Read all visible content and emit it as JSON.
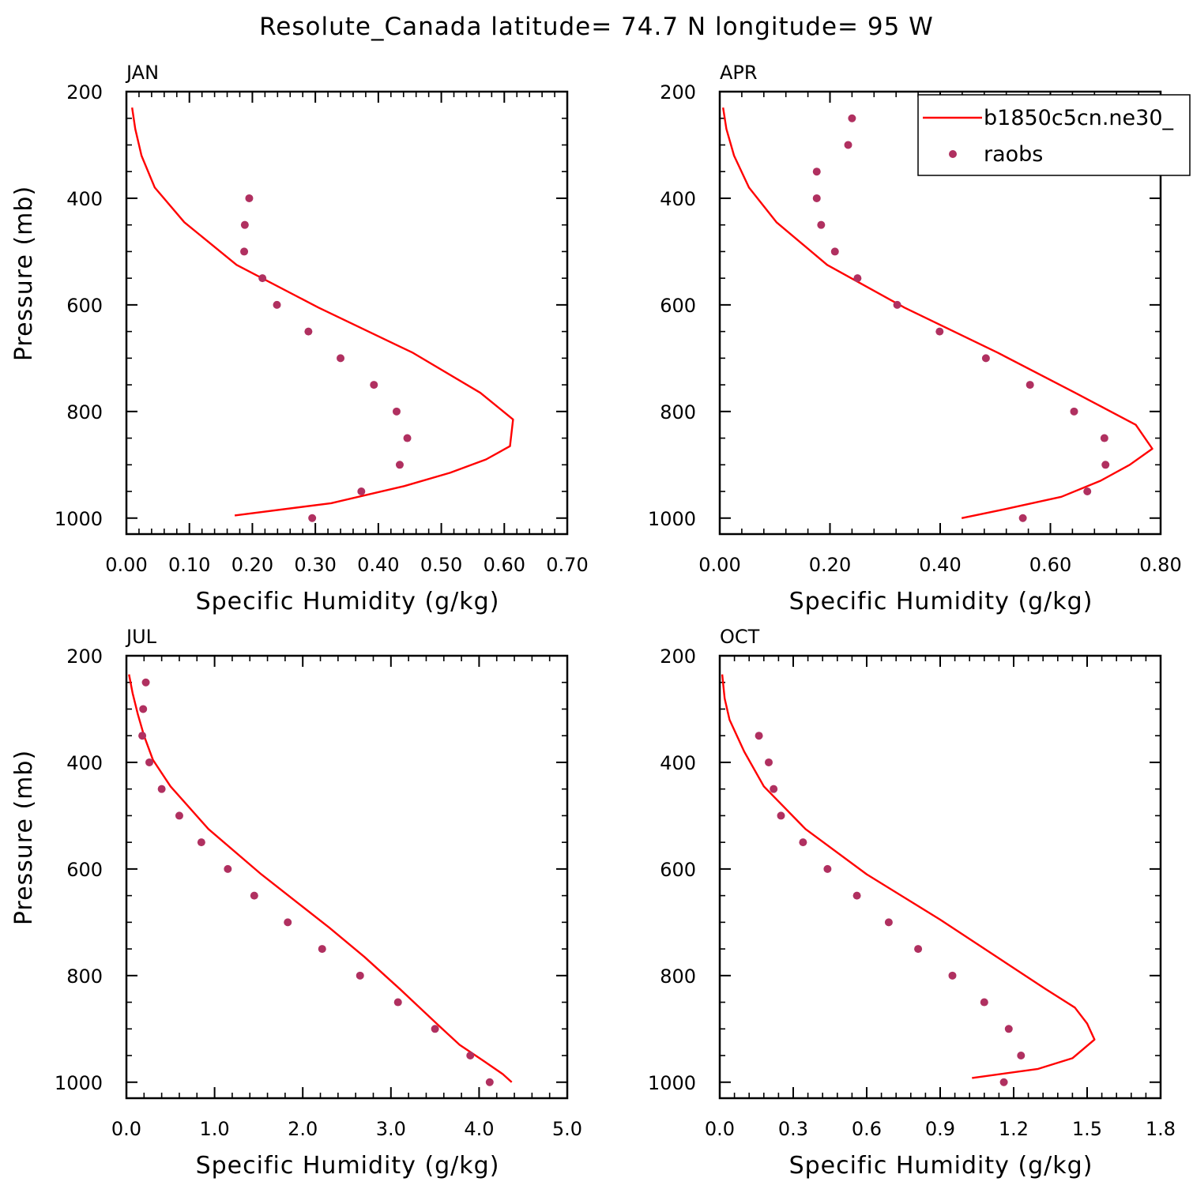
{
  "figure": {
    "title": "Resolute_Canada  latitude= 74.7 N longitude= 95 W",
    "legend": {
      "placement": "top-right of APR panel",
      "model_label": "b1850c5cn.ne30_",
      "obs_label": "raobs"
    },
    "colors": {
      "model": "#ff0000",
      "obs": "#b03060"
    }
  },
  "chart_data": [
    {
      "type": "line",
      "title": "JAN",
      "xlabel": "Specific Humidity (g/kg)",
      "ylabel": "Pressure (mb)",
      "xlim": [
        0,
        0.7
      ],
      "ylim": [
        200,
        1030
      ],
      "y_reversed": true,
      "xticks": [
        0,
        0.1,
        0.2,
        0.3,
        0.4,
        0.5,
        0.6,
        0.7
      ],
      "xtick_labels": [
        "0.00",
        "0.10",
        "0.20",
        "0.30",
        "0.40",
        "0.50",
        "0.60",
        "0.70"
      ],
      "yticks": [
        200,
        400,
        600,
        800,
        1000
      ],
      "ytick_labels": [
        "200",
        "400",
        "600",
        "800",
        "1000"
      ],
      "series": [
        {
          "kind": "line",
          "points": [
            [
              0.009,
              230
            ],
            [
              0.014,
              270
            ],
            [
              0.024,
              320
            ],
            [
              0.045,
              380
            ],
            [
              0.092,
              445
            ],
            [
              0.175,
              525
            ],
            [
              0.305,
              605
            ],
            [
              0.455,
              690
            ],
            [
              0.562,
              765
            ],
            [
              0.614,
              815
            ],
            [
              0.609,
              865
            ],
            [
              0.571,
              890
            ],
            [
              0.514,
              915
            ],
            [
              0.441,
              940
            ],
            [
              0.325,
              972
            ],
            [
              0.172,
              995
            ]
          ]
        },
        {
          "kind": "scatter",
          "points": [
            [
              0.195,
              400
            ],
            [
              0.188,
              450
            ],
            [
              0.187,
              500
            ],
            [
              0.216,
              550
            ],
            [
              0.239,
              600
            ],
            [
              0.289,
              650
            ],
            [
              0.34,
              700
            ],
            [
              0.393,
              750
            ],
            [
              0.429,
              800
            ],
            [
              0.446,
              850
            ],
            [
              0.434,
              900
            ],
            [
              0.373,
              950
            ],
            [
              0.295,
              1000
            ]
          ]
        }
      ]
    },
    {
      "type": "line",
      "title": "APR",
      "xlabel": "Specific Humidity (g/kg)",
      "ylabel": "",
      "xlim": [
        0,
        0.8
      ],
      "ylim": [
        200,
        1030
      ],
      "y_reversed": true,
      "xticks": [
        0,
        0.2,
        0.4,
        0.6,
        0.8
      ],
      "xtick_labels": [
        "0.00",
        "0.20",
        "0.40",
        "0.60",
        "0.80"
      ],
      "yticks": [
        200,
        400,
        600,
        800,
        1000
      ],
      "ytick_labels": [
        "200",
        "400",
        "600",
        "800",
        "1000"
      ],
      "series": [
        {
          "kind": "line",
          "points": [
            [
              0.006,
              230
            ],
            [
              0.012,
              270
            ],
            [
              0.026,
              320
            ],
            [
              0.053,
              380
            ],
            [
              0.103,
              445
            ],
            [
              0.195,
              525
            ],
            [
              0.335,
              605
            ],
            [
              0.505,
              690
            ],
            [
              0.645,
              765
            ],
            [
              0.755,
              825
            ],
            [
              0.785,
              870
            ],
            [
              0.744,
              900
            ],
            [
              0.691,
              930
            ],
            [
              0.62,
              960
            ],
            [
              0.51,
              985
            ],
            [
              0.439,
              1000
            ]
          ]
        },
        {
          "kind": "scatter",
          "points": [
            [
              0.24,
              250
            ],
            [
              0.233,
              300
            ],
            [
              0.176,
              350
            ],
            [
              0.176,
              400
            ],
            [
              0.184,
              450
            ],
            [
              0.209,
              500
            ],
            [
              0.25,
              550
            ],
            [
              0.322,
              600
            ],
            [
              0.399,
              650
            ],
            [
              0.483,
              700
            ],
            [
              0.563,
              750
            ],
            [
              0.643,
              800
            ],
            [
              0.698,
              850
            ],
            [
              0.7,
              900
            ],
            [
              0.667,
              950
            ],
            [
              0.55,
              1000
            ]
          ]
        }
      ]
    },
    {
      "type": "line",
      "title": "JUL",
      "xlabel": "Specific Humidity (g/kg)",
      "ylabel": "Pressure (mb)",
      "xlim": [
        0,
        5
      ],
      "ylim": [
        200,
        1030
      ],
      "y_reversed": true,
      "xticks": [
        0,
        1,
        2,
        3,
        4,
        5
      ],
      "xtick_labels": [
        "0.0",
        "1.0",
        "2.0",
        "3.0",
        "4.0",
        "5.0"
      ],
      "yticks": [
        200,
        400,
        600,
        800,
        1000
      ],
      "ytick_labels": [
        "200",
        "400",
        "600",
        "800",
        "1000"
      ],
      "series": [
        {
          "kind": "line",
          "points": [
            [
              0.03,
              235
            ],
            [
              0.07,
              270
            ],
            [
              0.13,
              310
            ],
            [
              0.2,
              350
            ],
            [
              0.3,
              395
            ],
            [
              0.5,
              445
            ],
            [
              0.93,
              525
            ],
            [
              1.53,
              610
            ],
            [
              2.3,
              710
            ],
            [
              2.7,
              765
            ],
            [
              3.1,
              825
            ],
            [
              3.55,
              895
            ],
            [
              3.78,
              930
            ],
            [
              4.05,
              960
            ],
            [
              4.27,
              985
            ],
            [
              4.37,
              1000
            ]
          ]
        },
        {
          "kind": "scatter",
          "points": [
            [
              0.22,
              250
            ],
            [
              0.19,
              300
            ],
            [
              0.18,
              350
            ],
            [
              0.26,
              400
            ],
            [
              0.4,
              450
            ],
            [
              0.6,
              500
            ],
            [
              0.85,
              550
            ],
            [
              1.15,
              600
            ],
            [
              1.45,
              650
            ],
            [
              1.83,
              700
            ],
            [
              2.22,
              750
            ],
            [
              2.65,
              800
            ],
            [
              3.08,
              850
            ],
            [
              3.5,
              900
            ],
            [
              3.9,
              950
            ],
            [
              4.12,
              1000
            ]
          ]
        }
      ]
    },
    {
      "type": "line",
      "title": "OCT",
      "xlabel": "Specific Humidity (g/kg)",
      "ylabel": "",
      "xlim": [
        0,
        1.8
      ],
      "ylim": [
        200,
        1030
      ],
      "y_reversed": true,
      "xticks": [
        0,
        0.3,
        0.6,
        0.9,
        1.2,
        1.5,
        1.8
      ],
      "xtick_labels": [
        "0.0",
        "0.3",
        "0.6",
        "0.9",
        "1.2",
        "1.5",
        "1.8"
      ],
      "yticks": [
        200,
        400,
        600,
        800,
        1000
      ],
      "ytick_labels": [
        "200",
        "400",
        "600",
        "800",
        "1000"
      ],
      "series": [
        {
          "kind": "line",
          "points": [
            [
              0.01,
              235
            ],
            [
              0.02,
              280
            ],
            [
              0.04,
              320
            ],
            [
              0.1,
              380
            ],
            [
              0.18,
              445
            ],
            [
              0.35,
              525
            ],
            [
              0.6,
              610
            ],
            [
              0.9,
              695
            ],
            [
              1.33,
              825
            ],
            [
              1.45,
              860
            ],
            [
              1.5,
              890
            ],
            [
              1.53,
              920
            ],
            [
              1.44,
              955
            ],
            [
              1.3,
              975
            ],
            [
              1.03,
              992
            ]
          ]
        },
        {
          "kind": "scatter",
          "points": [
            [
              0.16,
              350
            ],
            [
              0.2,
              400
            ],
            [
              0.22,
              450
            ],
            [
              0.25,
              500
            ],
            [
              0.34,
              550
            ],
            [
              0.44,
              600
            ],
            [
              0.56,
              650
            ],
            [
              0.69,
              700
            ],
            [
              0.81,
              750
            ],
            [
              0.95,
              800
            ],
            [
              1.08,
              850
            ],
            [
              1.18,
              900
            ],
            [
              1.23,
              950
            ],
            [
              1.16,
              1000
            ]
          ]
        }
      ]
    }
  ]
}
